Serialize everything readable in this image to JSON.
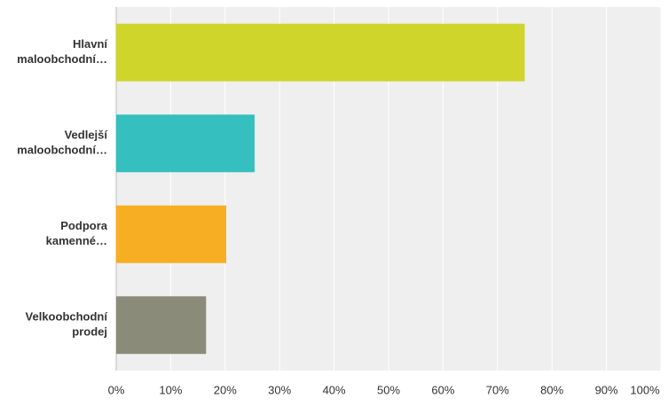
{
  "chart_data": {
    "type": "bar",
    "orientation": "horizontal",
    "categories": [
      [
        "Hlavní",
        "maloobchodní…"
      ],
      [
        "Vedlejší",
        "maloobchodní…"
      ],
      [
        "Podpora",
        "kamenné…"
      ],
      [
        "Velkoobchodní",
        "prodej"
      ]
    ],
    "values": [
      75,
      25.4,
      20.2,
      16.5
    ],
    "colors": [
      "#cfd52b",
      "#35bfbf",
      "#f7ae22",
      "#8b8b7a"
    ],
    "xlim": [
      0,
      100
    ],
    "xticks": [
      {
        "value": 0,
        "label": "0%"
      },
      {
        "value": 10,
        "label": "10%"
      },
      {
        "value": 20,
        "label": "20%"
      },
      {
        "value": 30,
        "label": "30%"
      },
      {
        "value": 40,
        "label": "40%"
      },
      {
        "value": 50,
        "label": "50%"
      },
      {
        "value": 60,
        "label": "60%"
      },
      {
        "value": 70,
        "label": "70%"
      },
      {
        "value": 80,
        "label": "80%"
      },
      {
        "value": 90,
        "label": "90%"
      },
      {
        "value": 100,
        "label": "100%"
      }
    ],
    "grid": true
  }
}
